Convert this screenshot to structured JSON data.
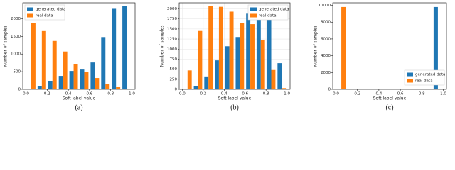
{
  "chart_data": [
    {
      "type": "histogram",
      "caption": "(a)",
      "xlabel": "Soft label value",
      "ylabel": "Number of samples",
      "bins": [
        0,
        0.1,
        0.2,
        0.3,
        0.4,
        0.5,
        0.6,
        0.7,
        0.8,
        0.9,
        1.0
      ],
      "series": [
        {
          "name": "generated data",
          "color": "#1f77b4",
          "values": [
            20,
            100,
            230,
            380,
            520,
            560,
            760,
            1480,
            2280,
            2350
          ]
        },
        {
          "name": "real data",
          "color": "#ff7f0e",
          "values": [
            1870,
            1650,
            1370,
            1070,
            720,
            500,
            320,
            150,
            60,
            20
          ]
        }
      ],
      "xlim": [
        -0.03,
        1.03
      ],
      "ylim": [
        0,
        2450
      ],
      "xticks": [
        {
          "value": 0,
          "label": "0.0"
        },
        0.2,
        0.4,
        0.6,
        0.8,
        {
          "value": 1,
          "label": "1.0"
        }
      ],
      "yticks": [
        0,
        500,
        1000,
        1500,
        2000
      ],
      "grid": false,
      "legend": "upper left"
    },
    {
      "type": "histogram",
      "caption": "(b)",
      "xlabel": "Soft label value",
      "ylabel": "Number of samples",
      "bins": [
        0,
        0.1,
        0.2,
        0.3,
        0.4,
        0.5,
        0.6,
        0.7,
        0.8,
        0.9,
        1.0
      ],
      "series": [
        {
          "name": "generated data",
          "color": "#1f77b4",
          "values": [
            10,
            80,
            320,
            720,
            1070,
            1300,
            1880,
            1850,
            1780,
            650
          ]
        },
        {
          "name": "real data",
          "color": "#ff7f0e",
          "values": [
            470,
            1450,
            2070,
            2050,
            1930,
            1650,
            1620,
            1230,
            480,
            30
          ]
        }
      ],
      "xlim": [
        -0.03,
        1.03
      ],
      "ylim": [
        0,
        2150
      ],
      "xticks": [
        {
          "value": 0,
          "label": "0.0"
        },
        0.2,
        0.4,
        0.6,
        0.8,
        {
          "value": 1,
          "label": "1.0"
        }
      ],
      "yticks": [
        0,
        250,
        500,
        750,
        1000,
        1250,
        1500,
        1750,
        2000
      ],
      "grid": true,
      "legend": "upper right"
    },
    {
      "type": "histogram",
      "caption": "(c)",
      "xlabel": "Soft label value",
      "ylabel": "Number of samples",
      "bins": [
        0,
        0.1,
        0.2,
        0.3,
        0.4,
        0.5,
        0.6,
        0.7,
        0.8,
        0.9,
        1.0
      ],
      "series": [
        {
          "name": "generated data",
          "color": "#1f77b4",
          "values": [
            0,
            0,
            0,
            0,
            0,
            40,
            50,
            60,
            80,
            9800
          ]
        },
        {
          "name": "real data",
          "color": "#ff7f0e",
          "values": [
            9800,
            60,
            40,
            30,
            20,
            10,
            10,
            0,
            0,
            0
          ]
        }
      ],
      "xlim": [
        -0.03,
        1.03
      ],
      "ylim": [
        0,
        10300
      ],
      "xticks": [
        {
          "value": 0,
          "label": "0.0"
        },
        0.2,
        0.4,
        0.6,
        0.8,
        {
          "value": 1,
          "label": "1.0"
        }
      ],
      "yticks": [
        0,
        2000,
        4000,
        6000,
        8000,
        10000
      ],
      "grid": false,
      "legend": "lower right"
    }
  ]
}
